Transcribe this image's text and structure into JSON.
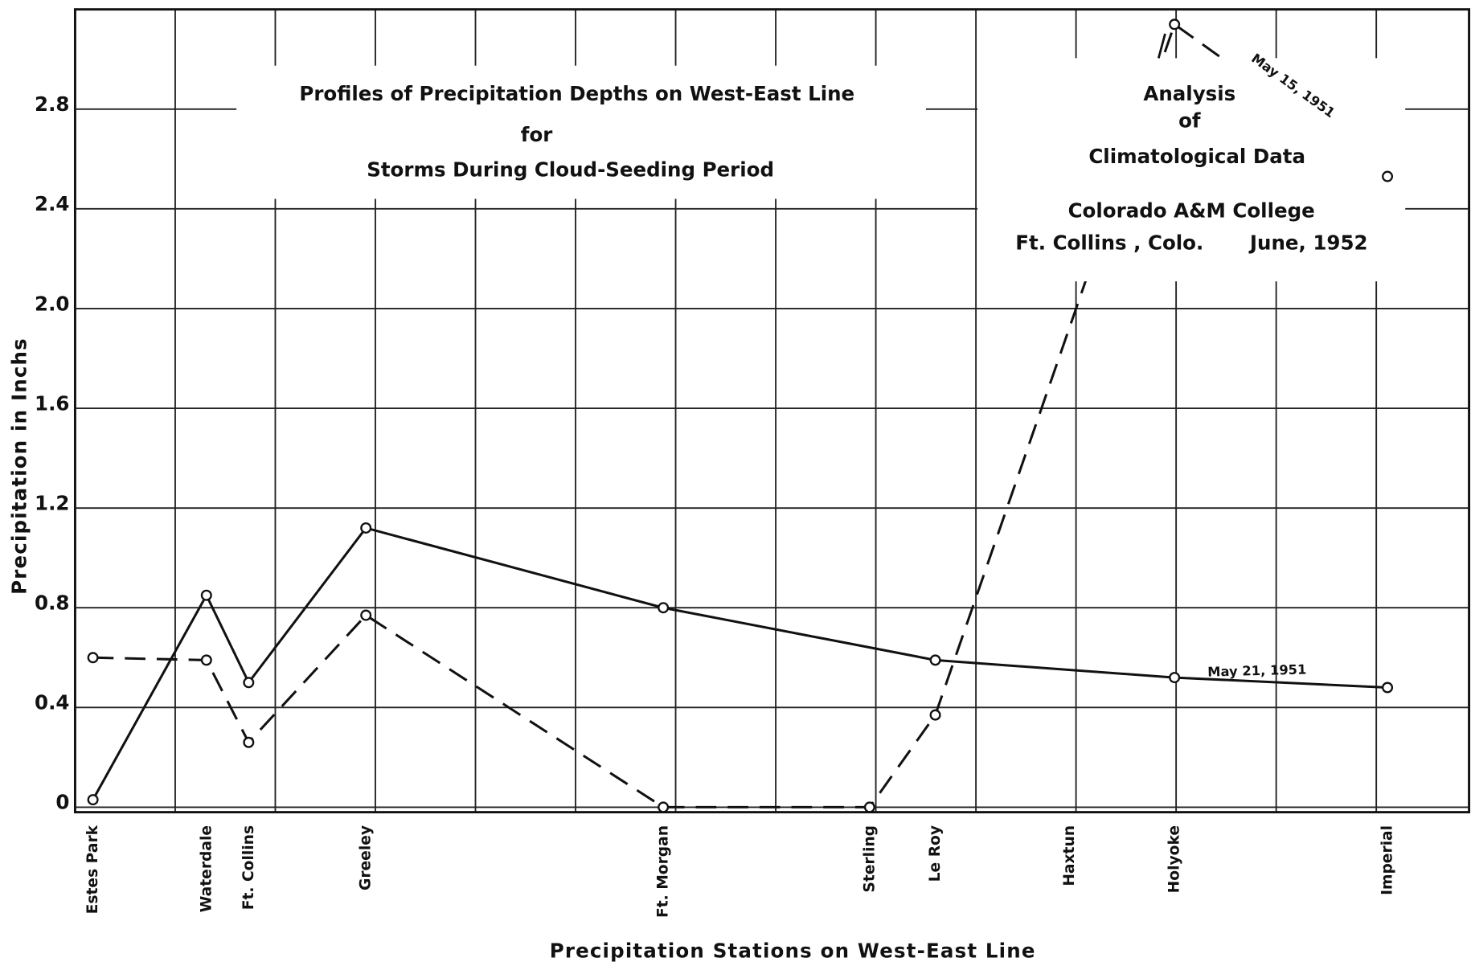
{
  "chart_data": {
    "type": "line",
    "title": "Profiles of Precipitation Depths on West-East Line",
    "subtitle": [
      "for",
      "Storms During Cloud-Seeding Period"
    ],
    "annotations": [
      "Analysis",
      "of",
      "Climatological Data",
      "Colorado A&M College",
      "Ft. Collins , Colo.",
      "June, 1952"
    ],
    "x_label": "Precipitation Stations on West-East Line",
    "y_label": "Precipitation in Inchs",
    "categories": [
      "Estes Park",
      "Waterdale",
      "Ft. Collins",
      "Greeley",
      "Ft. Morgan",
      "Sterling",
      "Le Roy",
      "Haxtun",
      "Holyoke",
      "Imperial"
    ],
    "series": [
      {
        "name": "May 21, 1951",
        "color": "#111111",
        "style": "solid",
        "x": [
          "Estes Park",
          "Waterdale",
          "Ft. Collins",
          "Greeley",
          "Ft. Morgan",
          "Le Roy",
          "Holyoke",
          "Imperial"
        ],
        "values": [
          0.03,
          0.85,
          0.5,
          1.12,
          0.8,
          0.59,
          0.52,
          0.48
        ]
      },
      {
        "name": "May 15, 1951",
        "color": "#111111",
        "style": "dashed",
        "x": [
          "Estes Park",
          "Waterdale",
          "Ft. Collins",
          "Greeley",
          "Ft. Morgan",
          "Sterling",
          "Le Roy",
          "Holyoke",
          "Imperial"
        ],
        "values": [
          0.6,
          0.59,
          0.26,
          0.77,
          0,
          0,
          0.37,
          3.14,
          2.53
        ]
      }
    ],
    "ylim": [
      -0.02,
      3.2
    ],
    "yticks": [
      0,
      0.4,
      0.8,
      1.2,
      1.6,
      {
        "value": 2,
        "label": "2.0"
      },
      2.4,
      2.8
    ],
    "grid": true
  }
}
